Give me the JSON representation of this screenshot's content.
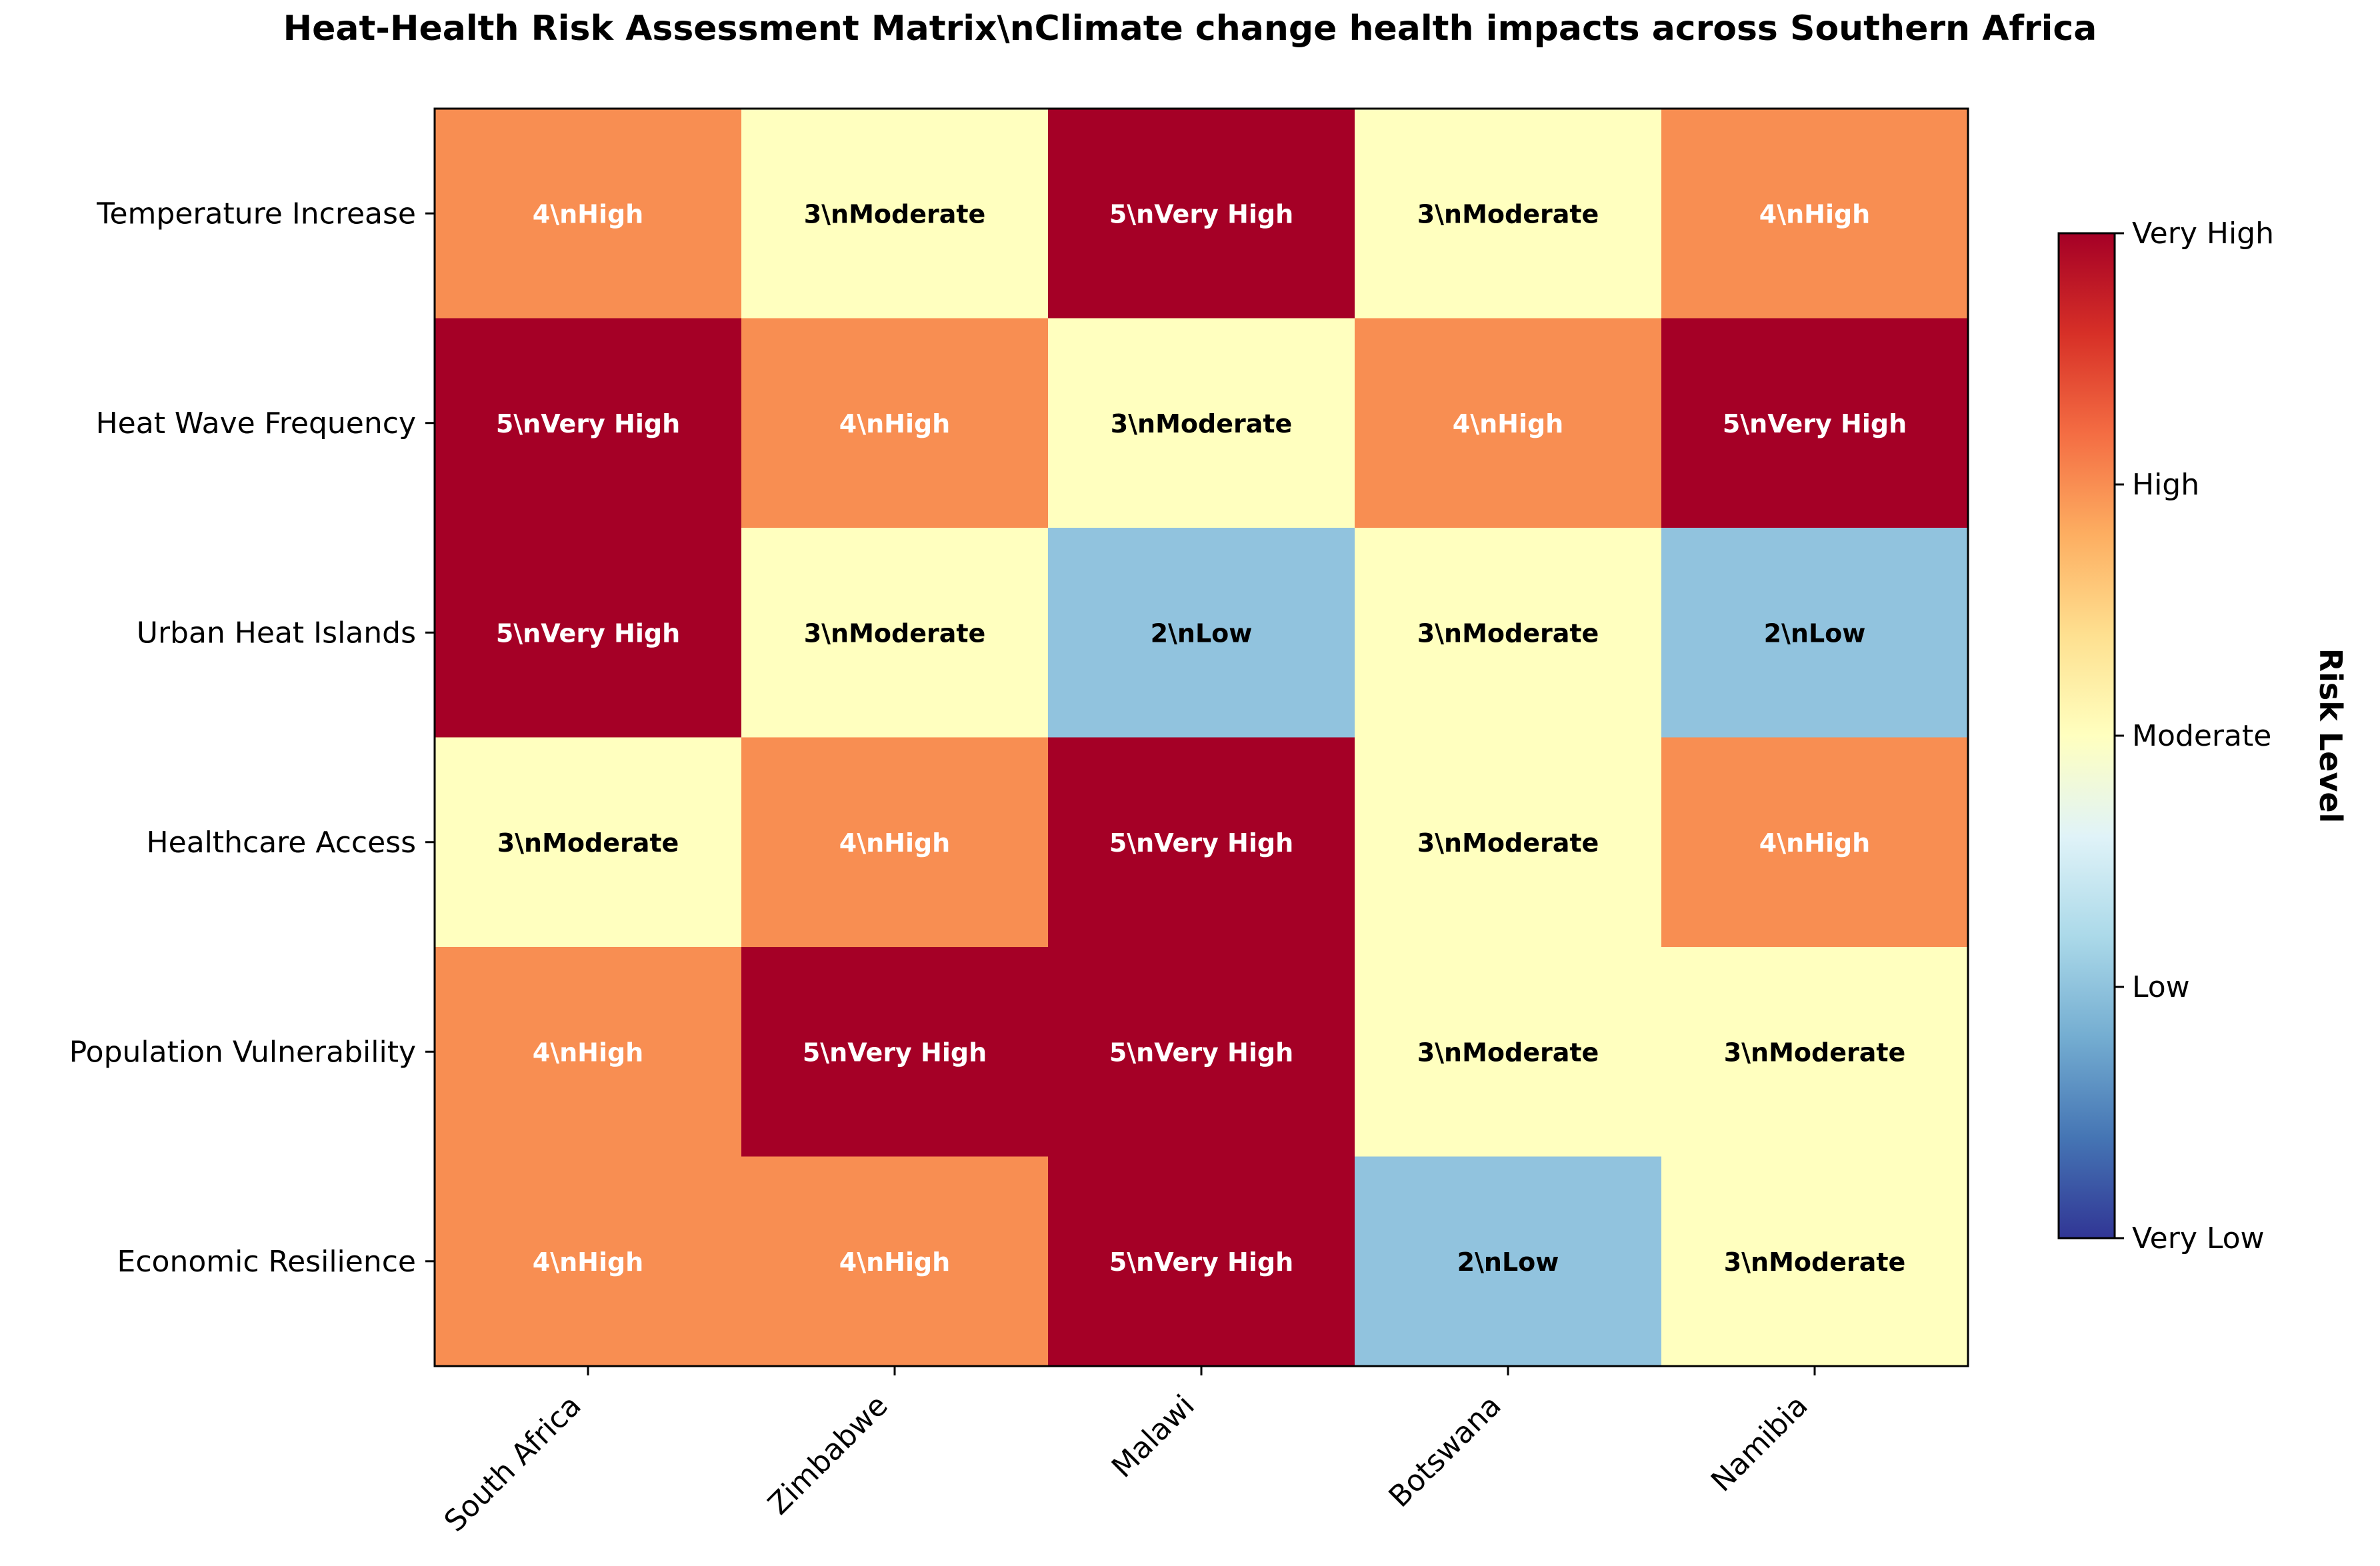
{
  "chart_data": {
    "type": "heatmap",
    "title": "Heat-Health Risk Assessment Matrix\\nClimate change health impacts across Southern Africa",
    "rows": [
      "Temperature Increase",
      "Heat Wave Frequency",
      "Urban Heat Islands",
      "Healthcare Access",
      "Population Vulnerability",
      "Economic Resilience"
    ],
    "columns": [
      "South Africa",
      "Zimbabwe",
      "Malawi",
      "Botswana",
      "Namibia"
    ],
    "values": [
      [
        4,
        3,
        5,
        3,
        4
      ],
      [
        5,
        4,
        3,
        4,
        5
      ],
      [
        5,
        3,
        2,
        3,
        2
      ],
      [
        3,
        4,
        5,
        3,
        4
      ],
      [
        4,
        5,
        5,
        3,
        3
      ],
      [
        4,
        4,
        5,
        2,
        3
      ]
    ],
    "cell_labels": [
      [
        "4\\nHigh",
        "3\\nModerate",
        "5\\nVery High",
        "3\\nModerate",
        "4\\nHigh"
      ],
      [
        "5\\nVery High",
        "4\\nHigh",
        "3\\nModerate",
        "4\\nHigh",
        "5\\nVery High"
      ],
      [
        "5\\nVery High",
        "3\\nModerate",
        "2\\nLow",
        "3\\nModerate",
        "2\\nLow"
      ],
      [
        "3\\nModerate",
        "4\\nHigh",
        "5\\nVery High",
        "3\\nModerate",
        "4\\nHigh"
      ],
      [
        "4\\nHigh",
        "5\\nVery High",
        "5\\nVery High",
        "3\\nModerate",
        "3\\nModerate"
      ],
      [
        "4\\nHigh",
        "4\\nHigh",
        "5\\nVery High",
        "2\\nLow",
        "3\\nModerate"
      ]
    ],
    "level_colors": {
      "2": "#91c3de",
      "3": "#ffffbf",
      "4": "#f88e52",
      "5": "#a50026"
    },
    "colorbar": {
      "label": "Risk Level",
      "range": [
        1,
        5
      ],
      "colormap": "RdYlBu_r",
      "stops": [
        "#313695",
        "#4575b4",
        "#74add1",
        "#abd9e9",
        "#e0f3f8",
        "#ffffbf",
        "#fee090",
        "#fdae61",
        "#f46d43",
        "#d73027",
        "#a50026"
      ],
      "ticks": [
        {
          "value": 1,
          "label": "Very Low"
        },
        {
          "value": 2,
          "label": "Low"
        },
        {
          "value": 3,
          "label": "Moderate"
        },
        {
          "value": 4,
          "label": "High"
        },
        {
          "value": 5,
          "label": "Very High"
        }
      ]
    }
  }
}
